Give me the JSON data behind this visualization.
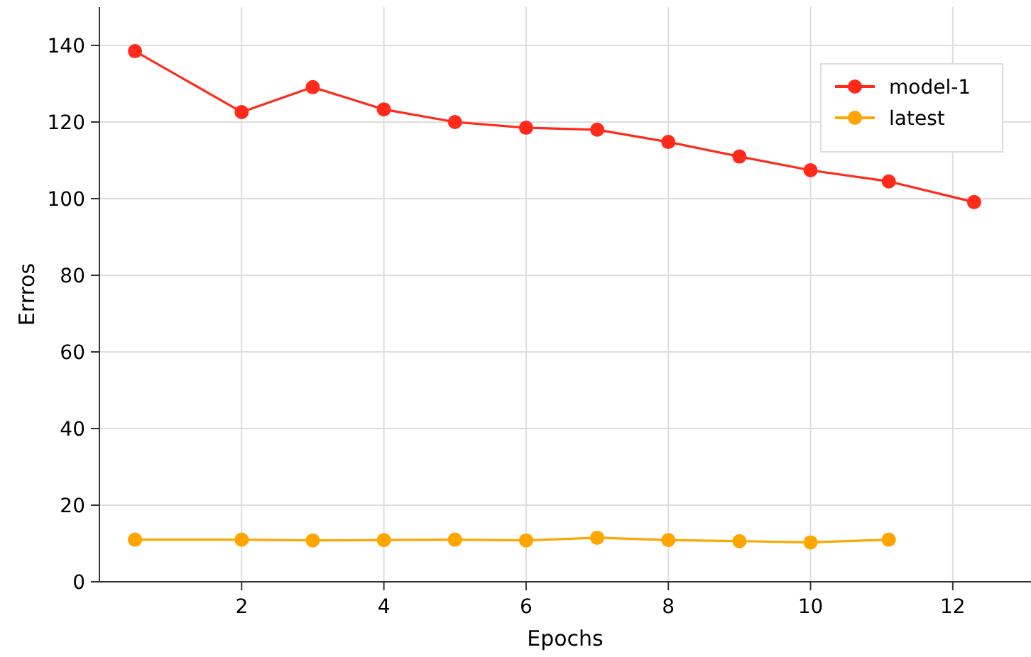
{
  "chart_data": {
    "type": "line",
    "xlabel": "Epochs",
    "ylabel": "Errros",
    "xlim": [
      0,
      13.1
    ],
    "xticks": [
      2,
      4,
      6,
      8,
      10,
      12
    ],
    "ylim": [
      0,
      150
    ],
    "yticks": [
      0,
      20,
      40,
      60,
      80,
      100,
      120,
      140
    ],
    "grid": true,
    "legend": "top right",
    "marker": "circle",
    "line_style": "solid",
    "series": [
      {
        "name": "model-1",
        "color": "#ff2a1a",
        "x": [
          0.5,
          2,
          3,
          4,
          5,
          6,
          7,
          8,
          9,
          10,
          11.1,
          12.3
        ],
        "values": [
          138.5,
          122.6,
          129.1,
          123.3,
          120,
          118.5,
          118,
          114.8,
          111,
          107.4,
          104.5,
          99.1
        ]
      },
      {
        "name": "latest",
        "color": "#ffa500",
        "x": [
          0.5,
          2,
          3,
          4,
          5,
          6,
          7,
          8,
          9,
          10,
          11.1
        ],
        "values": [
          11,
          11,
          10.8,
          10.9,
          11,
          10.8,
          11.5,
          10.9,
          10.6,
          10.3,
          11
        ]
      }
    ]
  }
}
